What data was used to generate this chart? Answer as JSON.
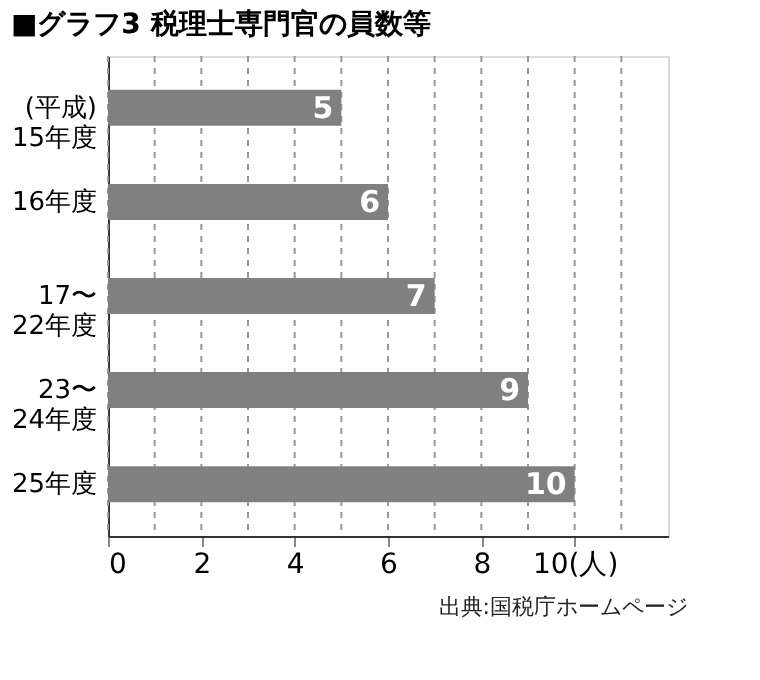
{
  "chart_data": {
    "type": "bar",
    "orientation": "horizontal",
    "title": "■グラフ3 税理士専門官の員数等",
    "categories": [
      "(平成)\n15年度",
      "16年度",
      "17〜\n22年度",
      "23〜\n24年度",
      "25年度"
    ],
    "values": [
      5,
      6,
      7,
      9,
      10
    ],
    "color": "#808080",
    "data_labels": true,
    "xlim": [
      0,
      12
    ],
    "xticks": [
      0,
      {
        "value": 1,
        "label": null
      },
      2,
      {
        "value": 3,
        "label": null
      },
      4,
      {
        "value": 5,
        "label": null
      },
      6,
      {
        "value": 7,
        "label": null
      },
      8,
      {
        "value": 9,
        "label": null
      },
      {
        "value": 10,
        "label": "10(人)"
      },
      {
        "value": 11,
        "label": null
      }
    ],
    "grid": "x",
    "annotations": [
      "出典:国税庁ホームページ"
    ]
  }
}
